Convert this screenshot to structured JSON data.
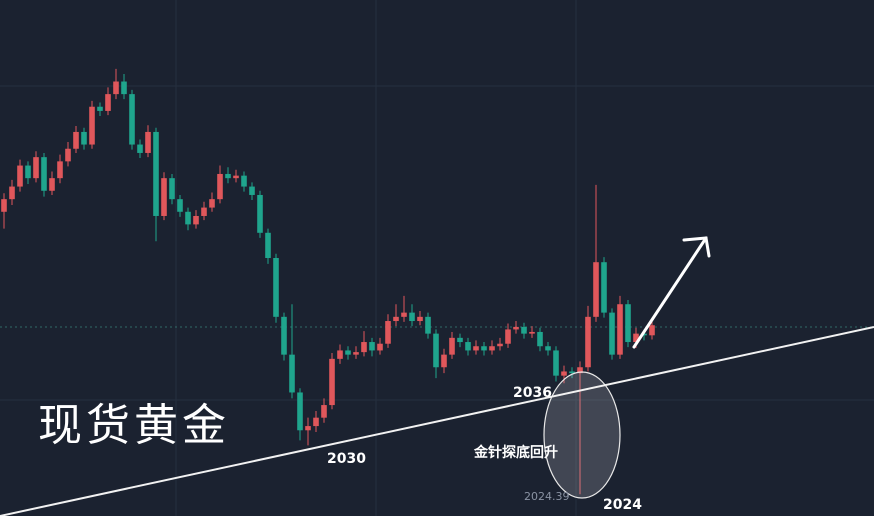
{
  "chart_data": {
    "type": "candlestick",
    "title": "现货黄金",
    "annotations": [
      "2030",
      "2036",
      "金针探底回升",
      "2024"
    ],
    "up_color": "#e0575b",
    "down_color": "#1fa58d",
    "ylim": [
      2021.8,
      2083.2
    ],
    "candles": [
      [
        2058,
        2060.2,
        2056,
        2059.5
      ],
      [
        2059.5,
        2061.8,
        2058.8,
        2061
      ],
      [
        2061,
        2064.2,
        2060.4,
        2063.5
      ],
      [
        2063.5,
        2064,
        2061.3,
        2062
      ],
      [
        2062,
        2065.2,
        2061.5,
        2064.5
      ],
      [
        2064.5,
        2065,
        2059.8,
        2060.5
      ],
      [
        2060.5,
        2062.8,
        2060,
        2062
      ],
      [
        2062,
        2064.8,
        2061.4,
        2064
      ],
      [
        2064,
        2066.3,
        2063.4,
        2065.5
      ],
      [
        2065.5,
        2068.2,
        2065,
        2067.5
      ],
      [
        2067.5,
        2068,
        2065.4,
        2066
      ],
      [
        2066,
        2071.2,
        2065.5,
        2070.5
      ],
      [
        2070.5,
        2071,
        2069.4,
        2070
      ],
      [
        2070,
        2072.8,
        2069.5,
        2072
      ],
      [
        2072,
        2075,
        2071.4,
        2073.5
      ],
      [
        2073.5,
        2074.4,
        2071.4,
        2072
      ],
      [
        2072,
        2072.5,
        2065.4,
        2066
      ],
      [
        2066,
        2066.6,
        2064.4,
        2065
      ],
      [
        2065,
        2068.3,
        2064.5,
        2067.5
      ],
      [
        2067.5,
        2068,
        2054.5,
        2057.5
      ],
      [
        2057.5,
        2062.7,
        2057,
        2062
      ],
      [
        2062,
        2062.5,
        2058.9,
        2059.5
      ],
      [
        2059.5,
        2060,
        2057.4,
        2058
      ],
      [
        2058,
        2058.5,
        2055.8,
        2056.5
      ],
      [
        2056.5,
        2058.2,
        2056,
        2057.5
      ],
      [
        2057.5,
        2059.2,
        2057,
        2058.5
      ],
      [
        2058.5,
        2060.3,
        2058,
        2059.5
      ],
      [
        2059.5,
        2063.5,
        2059,
        2062.5
      ],
      [
        2062.5,
        2063.3,
        2061.4,
        2062
      ],
      [
        2062,
        2063,
        2061.5,
        2062.3
      ],
      [
        2062.3,
        2062.8,
        2060.4,
        2061
      ],
      [
        2061,
        2061.5,
        2059.4,
        2060
      ],
      [
        2060,
        2060.5,
        2054.9,
        2055.5
      ],
      [
        2055.5,
        2056,
        2051.8,
        2052.5
      ],
      [
        2052.5,
        2053,
        2044.8,
        2045.5
      ],
      [
        2045.5,
        2046,
        2040.3,
        2041
      ],
      [
        2041,
        2047,
        2035.8,
        2036.5
      ],
      [
        2036.5,
        2037,
        2030.8,
        2032
      ],
      [
        2032,
        2033.5,
        2030.2,
        2032.5
      ],
      [
        2032.5,
        2034.3,
        2031.8,
        2033.5
      ],
      [
        2033.5,
        2035.8,
        2032.9,
        2035
      ],
      [
        2035,
        2041.2,
        2034.5,
        2040.5
      ],
      [
        2040.5,
        2042.2,
        2039.9,
        2041.5
      ],
      [
        2041.5,
        2042,
        2040.4,
        2041
      ],
      [
        2041,
        2042,
        2040.5,
        2041.3
      ],
      [
        2041.3,
        2043.8,
        2040.8,
        2042.5
      ],
      [
        2042.5,
        2043,
        2040.8,
        2041.5
      ],
      [
        2041.5,
        2043,
        2041,
        2042.3
      ],
      [
        2042.3,
        2045.8,
        2041.8,
        2045
      ],
      [
        2045,
        2047,
        2044.4,
        2045.5
      ],
      [
        2045.5,
        2048,
        2044.9,
        2046
      ],
      [
        2046,
        2047,
        2044.4,
        2045
      ],
      [
        2045,
        2046.2,
        2044.5,
        2045.5
      ],
      [
        2045.5,
        2046,
        2042.9,
        2043.5
      ],
      [
        2043.5,
        2044,
        2038.2,
        2039.5
      ],
      [
        2039.5,
        2041.7,
        2038.8,
        2041
      ],
      [
        2041,
        2043.7,
        2040.5,
        2043
      ],
      [
        2043,
        2043.5,
        2041.9,
        2042.5
      ],
      [
        2042.5,
        2043,
        2040.9,
        2041.5
      ],
      [
        2041.5,
        2042.7,
        2041,
        2042
      ],
      [
        2042,
        2042.5,
        2040.9,
        2041.5
      ],
      [
        2041.5,
        2042.7,
        2041,
        2042
      ],
      [
        2042,
        2043,
        2041.5,
        2042.3
      ],
      [
        2042.3,
        2044.7,
        2041.8,
        2044
      ],
      [
        2044,
        2045,
        2043.5,
        2044.3
      ],
      [
        2044.3,
        2044.8,
        2042.9,
        2043.5
      ],
      [
        2043.5,
        2044.4,
        2043,
        2043.7
      ],
      [
        2043.7,
        2044.2,
        2041.4,
        2042
      ],
      [
        2042,
        2042.5,
        2040.9,
        2041.5
      ],
      [
        2041.5,
        2042,
        2037.8,
        2038.5
      ],
      [
        2038.5,
        2039.7,
        2037.6,
        2039
      ],
      [
        2039,
        2039.5,
        2038.2,
        2038.8
      ],
      [
        2038.8,
        2040.2,
        2024.39,
        2039.5
      ],
      [
        2039.5,
        2046.8,
        2039,
        2045.5
      ],
      [
        2045.5,
        2061.2,
        2044.9,
        2052
      ],
      [
        2052,
        2052.6,
        2045.4,
        2046
      ],
      [
        2046,
        2046.5,
        2040.4,
        2041
      ],
      [
        2041,
        2048,
        2040.5,
        2047
      ],
      [
        2047,
        2047.5,
        2041.9,
        2042.5
      ],
      [
        2042.5,
        2044.2,
        2041.8,
        2043.5
      ],
      [
        2043.5,
        2044,
        2042.7,
        2043.3
      ],
      [
        2043.3,
        2045.2,
        2042.8,
        2044.5
      ]
    ]
  }
}
